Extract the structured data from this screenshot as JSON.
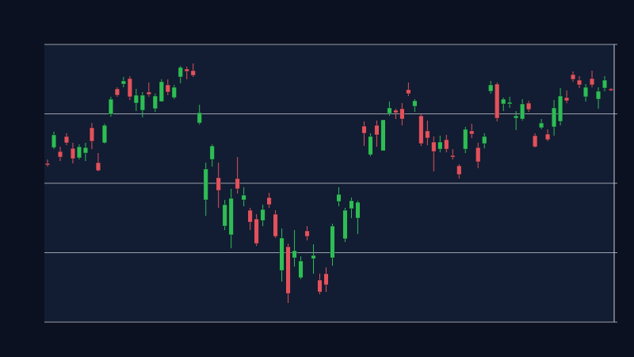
{
  "chart_data": {
    "type": "candlestick",
    "open": [
      200,
      220,
      215,
      234,
      219,
      207,
      213,
      245,
      201,
      226,
      262,
      294,
      300,
      307,
      276,
      267,
      290,
      269,
      278,
      299,
      283,
      309,
      319,
      317,
      251,
      154,
      205,
      182,
      121,
      110,
      181,
      154,
      141,
      130,
      128,
      157,
      136,
      65,
      95,
      81,
      56,
      115,
      80,
      53,
      61,
      81,
      152,
      105,
      143,
      131,
      247,
      211,
      248,
      216,
      263,
      267,
      269,
      293,
      272,
      260,
      241,
      227,
      218,
      230,
      210,
      197,
      218,
      241,
      220,
      225,
      291,
      300,
      275,
      275,
      257,
      256,
      276,
      235,
      245,
      237,
      246,
      253,
      283,
      312,
      305,
      284,
      307,
      281,
      295,
      294
    ],
    "high": [
      205,
      240,
      221,
      238,
      226,
      224,
      226,
      251,
      213,
      250,
      284,
      296,
      309,
      310,
      294,
      290,
      302,
      288,
      306,
      306,
      299,
      323,
      322,
      326,
      274,
      201,
      224,
      201,
      154,
      168,
      208,
      170,
      144,
      136,
      148,
      163,
      141,
      118,
      99,
      116,
      83,
      121,
      98,
      61,
      69,
      124,
      170,
      144,
      157,
      153,
      253,
      238,
      254,
      255,
      278,
      269,
      276,
      302,
      281,
      262,
      254,
      234,
      235,
      236,
      218,
      199,
      246,
      250,
      226,
      238,
      304,
      302,
      283,
      284,
      266,
      281,
      279,
      238,
      256,
      243,
      280,
      295,
      292,
      316,
      310,
      300,
      317,
      296,
      310,
      295
    ],
    "low": [
      196,
      218,
      203,
      223,
      200,
      205,
      203,
      218,
      190,
      225,
      259,
      284,
      296,
      280,
      266,
      258,
      284,
      265,
      278,
      286,
      281,
      301,
      306,
      309,
      249,
      134,
      196,
      144,
      116,
      93,
      162,
      146,
      116,
      96,
      121,
      144,
      106,
      51,
      24,
      70,
      54,
      103,
      61,
      35,
      38,
      71,
      146,
      101,
      131,
      111,
      222,
      209,
      221,
      216,
      260,
      256,
      248,
      285,
      265,
      222,
      223,
      190,
      214,
      214,
      205,
      181,
      213,
      232,
      194,
      219,
      288,
      253,
      266,
      270,
      242,
      254,
      265,
      220,
      243,
      228,
      235,
      248,
      276,
      303,
      295,
      278,
      296,
      269,
      291,
      291
    ],
    "close": [
      198,
      236,
      208,
      226,
      206,
      221,
      220,
      228,
      191,
      248,
      281,
      286,
      304,
      284,
      286,
      286,
      287,
      285,
      303,
      290,
      296,
      321,
      316,
      311,
      264,
      193,
      222,
      166,
      148,
      156,
      168,
      160,
      126,
      99,
      142,
      148,
      108,
      106,
      36,
      90,
      77,
      108,
      84,
      38,
      47,
      121,
      161,
      141,
      153,
      151,
      238,
      234,
      236,
      255,
      270,
      264,
      256,
      288,
      279,
      225,
      232,
      215,
      227,
      218,
      208,
      186,
      243,
      237,
      202,
      234,
      299,
      257,
      281,
      277,
      260,
      275,
      268,
      221,
      251,
      230,
      270,
      285,
      279,
      306,
      299,
      296,
      299,
      291,
      305,
      292
    ],
    "up_color": "#2ebd55",
    "down_color": "#e2525c",
    "ylim": [
      0,
      350
    ],
    "yticks": [
      0,
      87.5,
      175,
      262.5,
      350
    ],
    "grid": true
  }
}
